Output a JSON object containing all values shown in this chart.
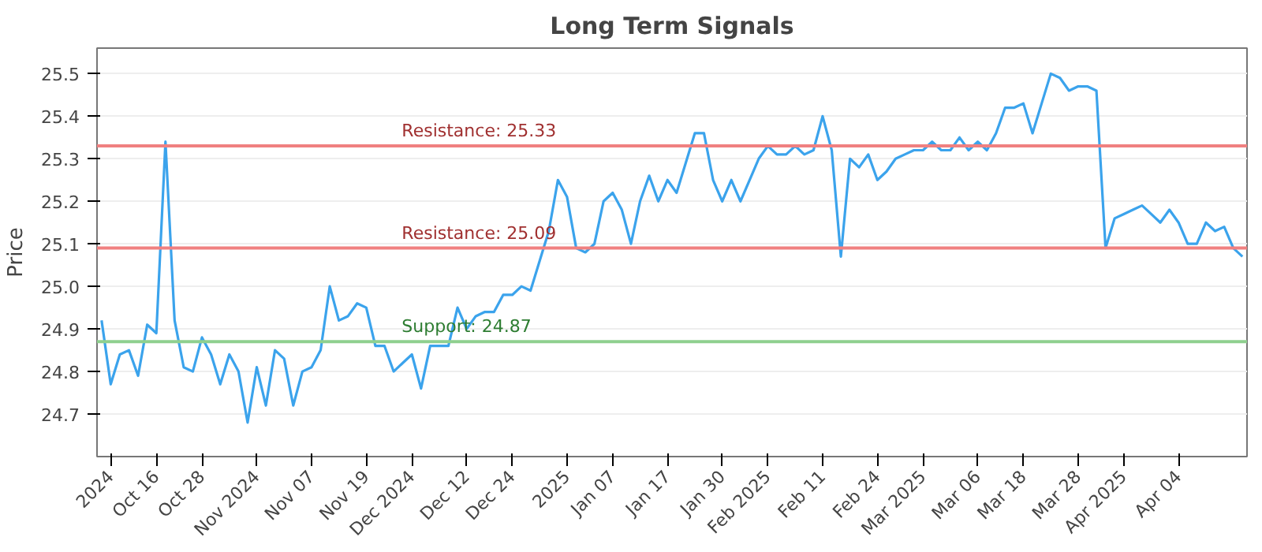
{
  "chart_data": {
    "type": "line",
    "title": "Long Term Signals",
    "ylabel": "Price",
    "categories": [
      null,
      "2024",
      null,
      null,
      null,
      null,
      "Oct 16",
      null,
      null,
      null,
      null,
      "Oct 28",
      null,
      null,
      null,
      null,
      null,
      "Nov 2024",
      null,
      null,
      null,
      null,
      null,
      "Nov 07",
      null,
      null,
      null,
      null,
      null,
      "Nov 19",
      null,
      null,
      null,
      null,
      "Dec 2024",
      null,
      null,
      null,
      null,
      null,
      "Dec 12",
      null,
      null,
      null,
      null,
      "Dec 24",
      null,
      null,
      null,
      null,
      null,
      "2025",
      null,
      null,
      null,
      null,
      "Jan 07",
      null,
      null,
      null,
      null,
      null,
      "Jan 17",
      null,
      null,
      null,
      null,
      null,
      "Jan 30",
      null,
      null,
      null,
      null,
      "Feb 2025",
      null,
      null,
      null,
      null,
      null,
      "Feb 11",
      null,
      null,
      null,
      null,
      null,
      "Feb 24",
      null,
      null,
      null,
      null,
      "Mar 2025",
      null,
      null,
      null,
      null,
      null,
      "Mar 06",
      null,
      null,
      null,
      null,
      "Mar 18",
      null,
      null,
      null,
      null,
      null,
      "Mar 28",
      null,
      null,
      null,
      null,
      "Apr 2025",
      null,
      null,
      null,
      null,
      null,
      "Apr 04",
      null,
      null,
      null,
      null,
      null,
      null,
      null
    ],
    "series": [
      {
        "color": "#3ba3ec",
        "values": [
          24.92,
          24.77,
          24.84,
          24.85,
          24.79,
          24.91,
          24.89,
          25.34,
          24.92,
          24.81,
          24.8,
          24.88,
          24.84,
          24.77,
          24.84,
          24.8,
          24.68,
          24.81,
          24.72,
          24.85,
          24.83,
          24.72,
          24.8,
          24.81,
          24.85,
          25.0,
          24.92,
          24.93,
          24.96,
          24.95,
          24.86,
          24.86,
          24.8,
          24.82,
          24.84,
          24.76,
          24.86,
          24.86,
          24.86,
          24.95,
          24.9,
          24.93,
          24.94,
          24.94,
          24.98,
          24.98,
          25.0,
          24.99,
          25.06,
          25.13,
          25.25,
          25.21,
          25.09,
          25.08,
          25.1,
          25.2,
          25.22,
          25.18,
          25.1,
          25.2,
          25.26,
          25.2,
          25.25,
          25.22,
          25.29,
          25.36,
          25.36,
          25.25,
          25.2,
          25.25,
          25.2,
          25.25,
          25.3,
          25.33,
          25.31,
          25.31,
          25.33,
          25.31,
          25.32,
          25.4,
          25.32,
          25.07,
          25.3,
          25.28,
          25.31,
          25.25,
          25.27,
          25.3,
          25.31,
          25.32,
          25.32,
          25.34,
          25.32,
          25.32,
          25.35,
          25.32,
          25.34,
          25.32,
          25.36,
          25.42,
          25.42,
          25.43,
          25.36,
          25.43,
          25.5,
          25.49,
          25.46,
          25.47,
          25.47,
          25.46,
          25.09,
          25.16,
          25.17,
          25.18,
          25.19,
          25.17,
          25.15,
          25.18,
          25.15,
          25.1,
          25.1,
          25.15,
          25.13,
          25.14,
          25.09,
          25.07
        ]
      }
    ],
    "ylim": [
      24.6,
      25.56
    ],
    "yticks": [
      24.7,
      24.8,
      24.9,
      {
        "value": 25.0,
        "label": "25.0"
      },
      25.1,
      25.2,
      25.3,
      25.4,
      25.5
    ],
    "ref_lines": [
      {
        "axis": "y",
        "value": 25.33,
        "label": "Resistance: 25.33",
        "color": "#f08080"
      },
      {
        "axis": "y",
        "value": 25.09,
        "label": "Resistance: 25.09",
        "color": "#f08080"
      },
      {
        "axis": "y",
        "value": 24.87,
        "label": "Support: 24.87",
        "color": "#8fd08f"
      }
    ],
    "grid": "y",
    "marker": "none",
    "line_style": "solid"
  }
}
